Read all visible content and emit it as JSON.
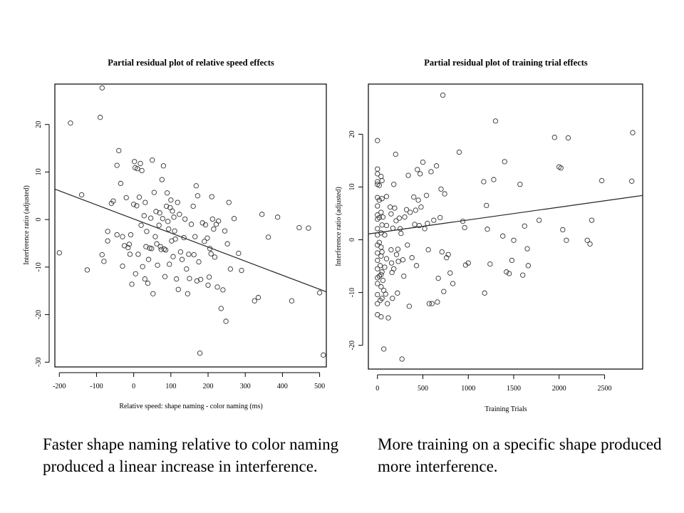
{
  "chart_data": [
    {
      "type": "scatter",
      "title": "Partial residual plot of relative speed effects",
      "xlabel": "Relative speed: shape naming - color naming (ms)",
      "ylabel": "Interference ratio (adjusted)",
      "xlim": [
        -212,
        518
      ],
      "ylim": [
        -31,
        28.5
      ],
      "xticks": [
        "-200",
        "-100",
        "0",
        "100",
        "200",
        "300",
        "400",
        "500"
      ],
      "xtick_values": [
        -200,
        -100,
        0,
        100,
        200,
        300,
        400,
        500
      ],
      "yticks": [
        "-30",
        "-20",
        "-10",
        "0",
        "10",
        "20"
      ],
      "ytick_values": [
        -30,
        -20,
        -10,
        0,
        10,
        20
      ],
      "grid": false,
      "fit_line": {
        "x": [
          -212,
          518
        ],
        "y": [
          6.4,
          -15.2
        ]
      },
      "points": [
        [
          -200,
          -7
        ],
        [
          -170,
          20.3
        ],
        [
          -140,
          5.2
        ],
        [
          -125,
          -10.6
        ],
        [
          -90,
          21.5
        ],
        [
          -85,
          27.7
        ],
        [
          -85,
          -7.4
        ],
        [
          -80,
          -8.8
        ],
        [
          -70,
          -2.5
        ],
        [
          -70,
          -4.5
        ],
        [
          -60,
          3.4
        ],
        [
          -55,
          3.9
        ],
        [
          -45,
          11.4
        ],
        [
          -45,
          -3.2
        ],
        [
          -40,
          14.5
        ],
        [
          -35,
          7.6
        ],
        [
          -30,
          -3.6
        ],
        [
          -30,
          -9.8
        ],
        [
          -25,
          -5.5
        ],
        [
          -20,
          4.6
        ],
        [
          -15,
          -5.9
        ],
        [
          -12,
          -5.2
        ],
        [
          -10,
          -7.3
        ],
        [
          -8,
          -3.2
        ],
        [
          -5,
          -13.6
        ],
        [
          0,
          3.2
        ],
        [
          2,
          12.2
        ],
        [
          4,
          10.9
        ],
        [
          5,
          -11.4
        ],
        [
          8,
          2.9
        ],
        [
          10,
          10.7
        ],
        [
          12,
          -7.3
        ],
        [
          15,
          4.7
        ],
        [
          18,
          11.8
        ],
        [
          20,
          -1.2
        ],
        [
          22,
          10.3
        ],
        [
          24,
          -9.9
        ],
        [
          28,
          0.8
        ],
        [
          30,
          -12.5
        ],
        [
          31,
          3.6
        ],
        [
          33,
          -5.7
        ],
        [
          35,
          -2.5
        ],
        [
          38,
          -13.4
        ],
        [
          40,
          -8.4
        ],
        [
          43,
          -6
        ],
        [
          46,
          0.3
        ],
        [
          48,
          -6.1
        ],
        [
          50,
          12.5
        ],
        [
          52,
          -15.6
        ],
        [
          55,
          5.7
        ],
        [
          58,
          -3.6
        ],
        [
          60,
          1.7
        ],
        [
          62,
          -5.1
        ],
        [
          64,
          -9.6
        ],
        [
          68,
          -1.2
        ],
        [
          70,
          1.4
        ],
        [
          72,
          -5.7
        ],
        [
          74,
          -6.3
        ],
        [
          76,
          8.4
        ],
        [
          78,
          0.2
        ],
        [
          80,
          11.3
        ],
        [
          82,
          -6.2
        ],
        [
          84,
          -12
        ],
        [
          86,
          -6.4
        ],
        [
          88,
          2.8
        ],
        [
          90,
          5.6
        ],
        [
          92,
          -0.4
        ],
        [
          94,
          -2
        ],
        [
          96,
          -9.4
        ],
        [
          98,
          2.5
        ],
        [
          100,
          4.1
        ],
        [
          102,
          -4.5
        ],
        [
          104,
          1.8
        ],
        [
          106,
          -7.8
        ],
        [
          108,
          0.5
        ],
        [
          110,
          -2.4
        ],
        [
          112,
          -4.1
        ],
        [
          115,
          -12.5
        ],
        [
          118,
          3.6
        ],
        [
          120,
          -14.7
        ],
        [
          123,
          1.1
        ],
        [
          126,
          -6.8
        ],
        [
          130,
          -8.4
        ],
        [
          135,
          -3.8
        ],
        [
          138,
          0.1
        ],
        [
          142,
          -10.4
        ],
        [
          145,
          -15.6
        ],
        [
          148,
          -7.3
        ],
        [
          150,
          -12.4
        ],
        [
          155,
          -1
        ],
        [
          160,
          2.8
        ],
        [
          162,
          -7.4
        ],
        [
          165,
          -3.6
        ],
        [
          168,
          7.1
        ],
        [
          170,
          -12.9
        ],
        [
          172,
          5
        ],
        [
          175,
          -8.9
        ],
        [
          178,
          -28.1
        ],
        [
          180,
          -12.6
        ],
        [
          185,
          -0.7
        ],
        [
          190,
          -4.6
        ],
        [
          193,
          -1.1
        ],
        [
          198,
          -3.9
        ],
        [
          200,
          -13.8
        ],
        [
          203,
          -12.1
        ],
        [
          205,
          -6.1
        ],
        [
          208,
          -7.2
        ],
        [
          210,
          4.8
        ],
        [
          212,
          0.1
        ],
        [
          215,
          -2
        ],
        [
          218,
          -7.9
        ],
        [
          222,
          -1
        ],
        [
          225,
          -14.2
        ],
        [
          228,
          -0.3
        ],
        [
          235,
          -18.7
        ],
        [
          240,
          -14.8
        ],
        [
          245,
          -2.4
        ],
        [
          248,
          -21.4
        ],
        [
          252,
          -5.1
        ],
        [
          256,
          3.6
        ],
        [
          260,
          -10.4
        ],
        [
          270,
          0.2
        ],
        [
          282,
          -7.1
        ],
        [
          290,
          -10.7
        ],
        [
          325,
          -17.1
        ],
        [
          335,
          -16.4
        ],
        [
          345,
          1.1
        ],
        [
          362,
          -3.7
        ],
        [
          387,
          0.5
        ],
        [
          425,
          -17.1
        ],
        [
          445,
          -1.7
        ],
        [
          470,
          -1.8
        ],
        [
          500,
          -15.4
        ],
        [
          510,
          -28.5
        ]
      ]
    },
    {
      "type": "scatter",
      "title": "Partial residual plot of training trial effects",
      "xlabel": "Training Trials",
      "ylabel": "Interference ratio (adjusted)",
      "xlim": [
        -100,
        2920
      ],
      "ylim": [
        -24.5,
        29.5
      ],
      "xticks": [
        "0",
        "500",
        "1000",
        "1500",
        "2000",
        "2500"
      ],
      "xtick_values": [
        0,
        500,
        1000,
        1500,
        2000,
        2500
      ],
      "yticks": [
        "-20",
        "-10",
        "0",
        "10",
        "20"
      ],
      "ytick_values": [
        -20,
        -10,
        0,
        10,
        20
      ],
      "grid": false,
      "fit_line": {
        "x": [
          -100,
          2920
        ],
        "y": [
          1.1,
          8.4
        ]
      },
      "points": [
        [
          0,
          18.8
        ],
        [
          0,
          13.4
        ],
        [
          0,
          12.5
        ],
        [
          0,
          11
        ],
        [
          0,
          10.5
        ],
        [
          0,
          8
        ],
        [
          0,
          6.4
        ],
        [
          0,
          4.7
        ],
        [
          0,
          3.9
        ],
        [
          0,
          2.1
        ],
        [
          0,
          0.9
        ],
        [
          0,
          -1
        ],
        [
          0,
          -2.5
        ],
        [
          0,
          -3.9
        ],
        [
          0,
          -5.5
        ],
        [
          0,
          -7.2
        ],
        [
          0,
          -8.3
        ],
        [
          0,
          -10.4
        ],
        [
          0,
          -12.1
        ],
        [
          0,
          -14.2
        ],
        [
          20,
          10.3
        ],
        [
          20,
          7.5
        ],
        [
          20,
          4.2
        ],
        [
          20,
          -0.5
        ],
        [
          20,
          -6.9
        ],
        [
          30,
          -4.9
        ],
        [
          30,
          -11.5
        ],
        [
          40,
          12
        ],
        [
          40,
          5.2
        ],
        [
          40,
          1.3
        ],
        [
          40,
          -1.4
        ],
        [
          40,
          -3.1
        ],
        [
          40,
          -6.6
        ],
        [
          40,
          -8.9
        ],
        [
          40,
          -14.6
        ],
        [
          50,
          11.2
        ],
        [
          50,
          7.8
        ],
        [
          50,
          2.8
        ],
        [
          50,
          -2.3
        ],
        [
          50,
          -6.1
        ],
        [
          50,
          -11.1
        ],
        [
          60,
          4.3
        ],
        [
          60,
          -7.7
        ],
        [
          70,
          -9.6
        ],
        [
          70,
          -20.7
        ],
        [
          80,
          0.9
        ],
        [
          80,
          -5.2
        ],
        [
          90,
          -10.3
        ],
        [
          100,
          8.2
        ],
        [
          100,
          2.7
        ],
        [
          100,
          -3.6
        ],
        [
          110,
          -12.1
        ],
        [
          120,
          -14.8
        ],
        [
          140,
          6.2
        ],
        [
          150,
          4.9
        ],
        [
          150,
          -1.9
        ],
        [
          155,
          -4.4
        ],
        [
          160,
          -6.2
        ],
        [
          165,
          -11.1
        ],
        [
          170,
          2.2
        ],
        [
          180,
          10.5
        ],
        [
          180,
          -5.5
        ],
        [
          190,
          6
        ],
        [
          200,
          16.2
        ],
        [
          205,
          3.6
        ],
        [
          210,
          -2.8
        ],
        [
          220,
          -10.1
        ],
        [
          225,
          -1.8
        ],
        [
          230,
          -4.1
        ],
        [
          240,
          4.1
        ],
        [
          250,
          2.1
        ],
        [
          260,
          1.2
        ],
        [
          270,
          -22.6
        ],
        [
          280,
          -3.8
        ],
        [
          290,
          -6.9
        ],
        [
          300,
          4.3
        ],
        [
          320,
          5.7
        ],
        [
          330,
          -1
        ],
        [
          340,
          12.2
        ],
        [
          350,
          -12.6
        ],
        [
          360,
          5.2
        ],
        [
          380,
          -3.4
        ],
        [
          400,
          8.1
        ],
        [
          410,
          2.9
        ],
        [
          420,
          5.6
        ],
        [
          430,
          -4.9
        ],
        [
          440,
          13.3
        ],
        [
          450,
          7.5
        ],
        [
          460,
          2.7
        ],
        [
          470,
          12.5
        ],
        [
          480,
          6.2
        ],
        [
          500,
          14.7
        ],
        [
          520,
          2.1
        ],
        [
          540,
          8.4
        ],
        [
          550,
          3.1
        ],
        [
          560,
          -1.9
        ],
        [
          570,
          -12.1
        ],
        [
          590,
          12.9
        ],
        [
          600,
          -12.1
        ],
        [
          620,
          3.7
        ],
        [
          650,
          14
        ],
        [
          660,
          -11.8
        ],
        [
          670,
          -7.3
        ],
        [
          690,
          4.2
        ],
        [
          700,
          9.6
        ],
        [
          710,
          -2.3
        ],
        [
          720,
          27.4
        ],
        [
          730,
          -9.8
        ],
        [
          740,
          8.7
        ],
        [
          760,
          -3.4
        ],
        [
          780,
          -2.8
        ],
        [
          800,
          -6.3
        ],
        [
          830,
          -8.3
        ],
        [
          900,
          16.6
        ],
        [
          940,
          3.5
        ],
        [
          960,
          2.3
        ],
        [
          970,
          -4.8
        ],
        [
          1000,
          -4.4
        ],
        [
          1170,
          11
        ],
        [
          1180,
          -10.1
        ],
        [
          1200,
          6.5
        ],
        [
          1210,
          2
        ],
        [
          1240,
          -4.6
        ],
        [
          1280,
          11.4
        ],
        [
          1300,
          22.5
        ],
        [
          1380,
          0.7
        ],
        [
          1400,
          14.8
        ],
        [
          1420,
          -6.1
        ],
        [
          1450,
          -6.4
        ],
        [
          1480,
          -3.9
        ],
        [
          1500,
          -0.1
        ],
        [
          1570,
          10.5
        ],
        [
          1600,
          -6.7
        ],
        [
          1620,
          2.6
        ],
        [
          1650,
          -1.7
        ],
        [
          1660,
          -4.9
        ],
        [
          1780,
          3.7
        ],
        [
          1950,
          19.4
        ],
        [
          2000,
          13.8
        ],
        [
          2020,
          13.6
        ],
        [
          2040,
          1.9
        ],
        [
          2080,
          -0.1
        ],
        [
          2100,
          19.3
        ],
        [
          2310,
          -0.1
        ],
        [
          2340,
          -0.8
        ],
        [
          2360,
          3.7
        ],
        [
          2470,
          11.2
        ],
        [
          2800,
          11.1
        ],
        [
          2810,
          20.3
        ]
      ]
    }
  ],
  "captions": {
    "left": "Faster shape naming relative to color naming produced a linear increase in interference.",
    "right": "More training on a specific shape produced more interference."
  }
}
